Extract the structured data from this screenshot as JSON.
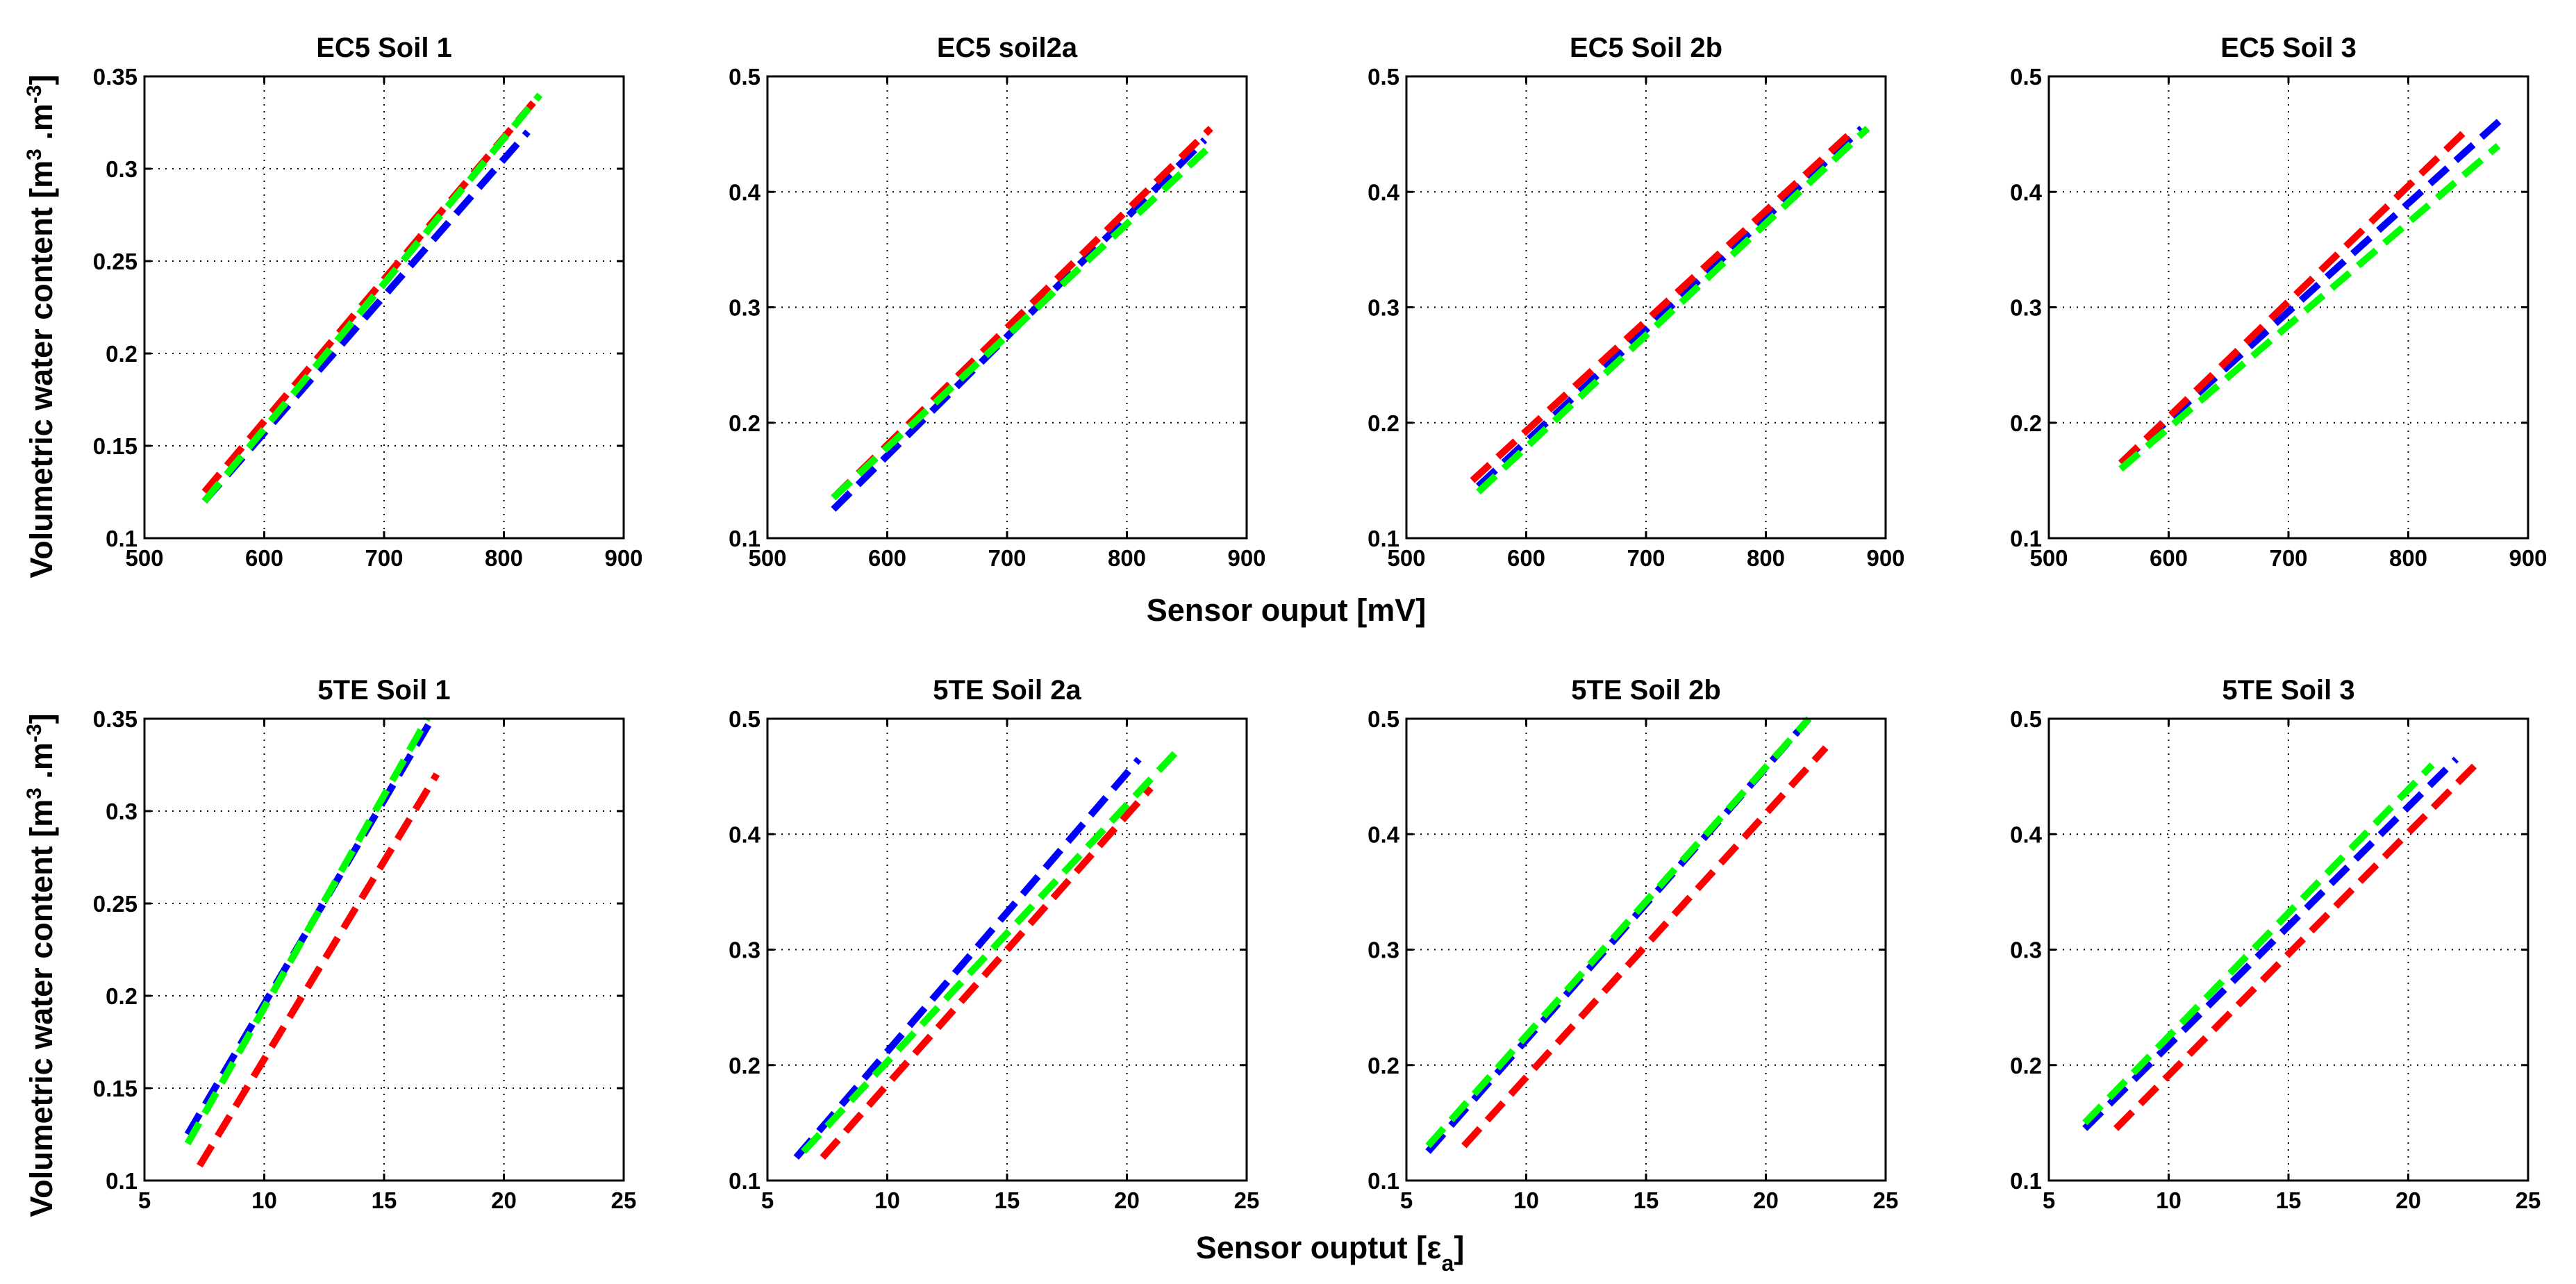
{
  "chart_data": [
    {
      "type": "line",
      "title": "EC5 Soil 1",
      "xlim": [
        500,
        900
      ],
      "ylim": [
        0.1,
        0.35
      ],
      "xticks": [
        500,
        600,
        700,
        800,
        900
      ],
      "yticks": [
        0.1,
        0.15,
        0.2,
        0.25,
        0.3,
        0.35
      ],
      "xtick_labels": [
        "500",
        "600",
        "700",
        "800",
        "900"
      ],
      "ytick_labels": [
        "0.1",
        "0.15",
        "0.2",
        "0.25",
        "0.3",
        "0.35"
      ],
      "grid": true,
      "series": [
        {
          "name": "blue",
          "color": "#0000ff",
          "x": [
            550,
            820
          ],
          "y": [
            0.12,
            0.32
          ]
        },
        {
          "name": "red",
          "color": "#ff0000",
          "x": [
            550,
            830
          ],
          "y": [
            0.125,
            0.34
          ]
        },
        {
          "name": "green",
          "color": "#00ff00",
          "x": [
            550,
            830
          ],
          "y": [
            0.12,
            0.34
          ]
        }
      ]
    },
    {
      "type": "line",
      "title": "EC5 soil2a",
      "xlim": [
        500,
        900
      ],
      "ylim": [
        0.1,
        0.5
      ],
      "xticks": [
        500,
        600,
        700,
        800,
        900
      ],
      "yticks": [
        0.1,
        0.2,
        0.3,
        0.4,
        0.5
      ],
      "xtick_labels": [
        "500",
        "600",
        "700",
        "800",
        "900"
      ],
      "ytick_labels": [
        "0.1",
        "0.2",
        "0.3",
        "0.4",
        "0.5"
      ],
      "grid": true,
      "series": [
        {
          "name": "blue",
          "color": "#0000ff",
          "x": [
            555,
            865
          ],
          "y": [
            0.125,
            0.445
          ]
        },
        {
          "name": "red",
          "color": "#ff0000",
          "x": [
            555,
            870
          ],
          "y": [
            0.135,
            0.455
          ]
        },
        {
          "name": "green",
          "color": "#00ff00",
          "x": [
            555,
            870
          ],
          "y": [
            0.135,
            0.44
          ]
        }
      ]
    },
    {
      "type": "line",
      "title": "EC5 Soil 2b",
      "xlim": [
        500,
        900
      ],
      "ylim": [
        0.1,
        0.5
      ],
      "xticks": [
        500,
        600,
        700,
        800,
        900
      ],
      "yticks": [
        0.1,
        0.2,
        0.3,
        0.4,
        0.5
      ],
      "xtick_labels": [
        "500",
        "600",
        "700",
        "800",
        "900"
      ],
      "ytick_labels": [
        "0.1",
        "0.2",
        "0.3",
        "0.4",
        "0.5"
      ],
      "grid": true,
      "series": [
        {
          "name": "blue",
          "color": "#0000ff",
          "x": [
            560,
            880
          ],
          "y": [
            0.145,
            0.455
          ]
        },
        {
          "name": "red",
          "color": "#ff0000",
          "x": [
            555,
            875
          ],
          "y": [
            0.15,
            0.455
          ]
        },
        {
          "name": "green",
          "color": "#00ff00",
          "x": [
            560,
            885
          ],
          "y": [
            0.14,
            0.455
          ]
        }
      ]
    },
    {
      "type": "line",
      "title": "EC5 Soil 3",
      "xlim": [
        500,
        900
      ],
      "ylim": [
        0.1,
        0.5
      ],
      "xticks": [
        500,
        600,
        700,
        800,
        900
      ],
      "yticks": [
        0.1,
        0.2,
        0.3,
        0.4,
        0.5
      ],
      "xtick_labels": [
        "500",
        "600",
        "700",
        "800",
        "900"
      ],
      "ytick_labels": [
        "0.1",
        "0.2",
        "0.3",
        "0.4",
        "0.5"
      ],
      "grid": true,
      "series": [
        {
          "name": "blue",
          "color": "#0000ff",
          "x": [
            560,
            880
          ],
          "y": [
            0.165,
            0.465
          ]
        },
        {
          "name": "red",
          "color": "#ff0000",
          "x": [
            560,
            850
          ],
          "y": [
            0.165,
            0.455
          ]
        },
        {
          "name": "green",
          "color": "#00ff00",
          "x": [
            560,
            875
          ],
          "y": [
            0.16,
            0.44
          ]
        }
      ]
    },
    {
      "type": "line",
      "title": "5TE Soil 1",
      "xlim": [
        5,
        25
      ],
      "ylim": [
        0.1,
        0.35
      ],
      "xticks": [
        5,
        10,
        15,
        20,
        25
      ],
      "yticks": [
        0.1,
        0.15,
        0.2,
        0.25,
        0.3,
        0.35
      ],
      "xtick_labels": [
        "5",
        "10",
        "15",
        "20",
        "25"
      ],
      "ytick_labels": [
        "0.1",
        "0.15",
        "0.2",
        "0.25",
        "0.3",
        "0.35"
      ],
      "grid": true,
      "series": [
        {
          "name": "blue",
          "color": "#0000ff",
          "x": [
            6.8,
            17
          ],
          "y": [
            0.125,
            0.35
          ]
        },
        {
          "name": "red",
          "color": "#ff0000",
          "x": [
            7.3,
            17.2
          ],
          "y": [
            0.108,
            0.32
          ]
        },
        {
          "name": "green",
          "color": "#00ff00",
          "x": [
            6.8,
            16.8
          ],
          "y": [
            0.12,
            0.35
          ]
        }
      ]
    },
    {
      "type": "line",
      "title": "5TE Soil 2a",
      "xlim": [
        5,
        25
      ],
      "ylim": [
        0.1,
        0.5
      ],
      "xticks": [
        5,
        10,
        15,
        20,
        25
      ],
      "yticks": [
        0.1,
        0.2,
        0.3,
        0.4,
        0.5
      ],
      "xtick_labels": [
        "5",
        "10",
        "15",
        "20",
        "25"
      ],
      "ytick_labels": [
        "0.1",
        "0.2",
        "0.3",
        "0.4",
        "0.5"
      ],
      "grid": true,
      "series": [
        {
          "name": "blue",
          "color": "#0000ff",
          "x": [
            6.2,
            20.5
          ],
          "y": [
            0.12,
            0.465
          ]
        },
        {
          "name": "red",
          "color": "#ff0000",
          "x": [
            7.3,
            21
          ],
          "y": [
            0.12,
            0.44
          ]
        },
        {
          "name": "green",
          "color": "#00ff00",
          "x": [
            6.5,
            22
          ],
          "y": [
            0.125,
            0.47
          ]
        }
      ]
    },
    {
      "type": "line",
      "title": "5TE Soil 2b",
      "xlim": [
        5,
        25
      ],
      "ylim": [
        0.1,
        0.5
      ],
      "xticks": [
        5,
        10,
        15,
        20,
        25
      ],
      "yticks": [
        0.1,
        0.2,
        0.3,
        0.4,
        0.5
      ],
      "xtick_labels": [
        "5",
        "10",
        "15",
        "20",
        "25"
      ],
      "ytick_labels": [
        "0.1",
        "0.2",
        "0.3",
        "0.4",
        "0.5"
      ],
      "grid": true,
      "series": [
        {
          "name": "blue",
          "color": "#0000ff",
          "x": [
            5.9,
            21.8
          ],
          "y": [
            0.125,
            0.5
          ]
        },
        {
          "name": "red",
          "color": "#ff0000",
          "x": [
            7.4,
            22.5
          ],
          "y": [
            0.13,
            0.475
          ]
        },
        {
          "name": "green",
          "color": "#00ff00",
          "x": [
            5.9,
            21.8
          ],
          "y": [
            0.13,
            0.5
          ]
        }
      ]
    },
    {
      "type": "line",
      "title": "5TE Soil 3",
      "xlim": [
        5,
        25
      ],
      "ylim": [
        0.1,
        0.5
      ],
      "xticks": [
        5,
        10,
        15,
        20,
        25
      ],
      "yticks": [
        0.1,
        0.2,
        0.3,
        0.4,
        0.5
      ],
      "xtick_labels": [
        "5",
        "10",
        "15",
        "20",
        "25"
      ],
      "ytick_labels": [
        "0.1",
        "0.2",
        "0.3",
        "0.4",
        "0.5"
      ],
      "grid": true,
      "series": [
        {
          "name": "blue",
          "color": "#0000ff",
          "x": [
            6.5,
            22
          ],
          "y": [
            0.145,
            0.465
          ]
        },
        {
          "name": "red",
          "color": "#ff0000",
          "x": [
            7.8,
            22.8
          ],
          "y": [
            0.145,
            0.46
          ]
        },
        {
          "name": "green",
          "color": "#00ff00",
          "x": [
            6.5,
            21
          ],
          "y": [
            0.15,
            0.46
          ]
        }
      ]
    }
  ],
  "row_labels": {
    "y_label_line1": "Volumetric water content [m",
    "y_label_sup1": "3",
    "y_label_mid": " .m",
    "y_label_sup2": "-3",
    "y_label_end": "]"
  },
  "x_labels": {
    "top": "Sensor ouput [mV]",
    "bottom_main": "Sensor ouptut [ε",
    "bottom_sub": "a",
    "bottom_end": "]"
  }
}
